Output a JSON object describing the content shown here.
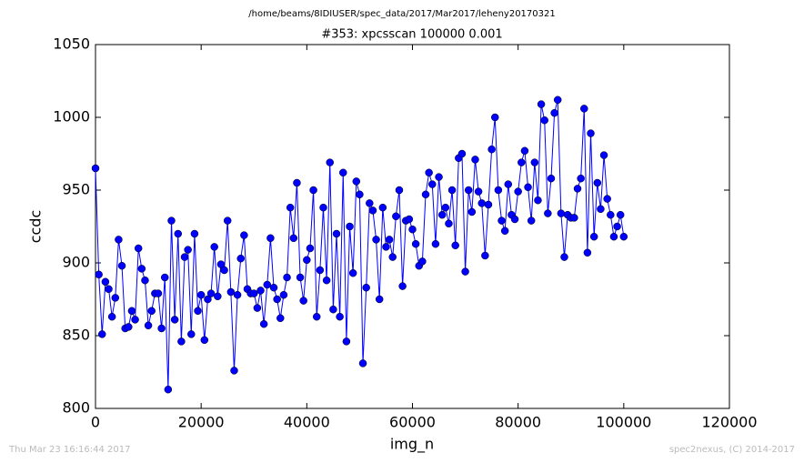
{
  "chart_data": {
    "type": "line",
    "suptitle": "/home/beams/8IDIUSER/spec_data/2017/Mar2017/leheny20170321",
    "title": "#353: xpcsscan 100000 0.001",
    "x_label": "img_n",
    "y_label": "ccdc",
    "footer_left": "Thu Mar 23 16:16:44 2017",
    "footer_right": "spec2nexus, (C) 2014-2017",
    "xlim": [
      0,
      120000
    ],
    "xticks": [
      0,
      20000,
      40000,
      60000,
      80000,
      100000,
      120000
    ],
    "ylim": [
      800,
      1050
    ],
    "yticks": [
      800,
      850,
      900,
      950,
      1000,
      1050
    ],
    "grid": false,
    "x": [
      0,
      625,
      1250,
      1875,
      2500,
      3125,
      3750,
      4375,
      5000,
      5625,
      6250,
      6875,
      7500,
      8125,
      8750,
      9375,
      10000,
      10625,
      11250,
      11875,
      12500,
      13125,
      13750,
      14375,
      15000,
      15625,
      16250,
      16875,
      17500,
      18125,
      18750,
      19375,
      20000,
      20625,
      21250,
      21875,
      22500,
      23125,
      23750,
      24375,
      25000,
      25625,
      26250,
      26875,
      27500,
      28125,
      28750,
      29375,
      30000,
      30625,
      31250,
      31875,
      32500,
      33125,
      33750,
      34375,
      35000,
      35625,
      36250,
      36875,
      37500,
      38125,
      38750,
      39375,
      40000,
      40625,
      41250,
      41875,
      42500,
      43125,
      43750,
      44375,
      45000,
      45625,
      46250,
      46875,
      47500,
      48125,
      48750,
      49375,
      50000,
      50625,
      51250,
      51875,
      52500,
      53125,
      53750,
      54375,
      55000,
      55625,
      56250,
      56875,
      57500,
      58125,
      58750,
      59375,
      60000,
      60625,
      61250,
      61875,
      62500,
      63125,
      63750,
      64375,
      65000,
      65625,
      66250,
      66875,
      67500,
      68125,
      68750,
      69375,
      70000,
      70625,
      71250,
      71875,
      72500,
      73125,
      73750,
      74375,
      75000,
      75625,
      76250,
      76875,
      77500,
      78125,
      78750,
      79375,
      80000,
      80625,
      81250,
      81875,
      82500,
      83125,
      83750,
      84375,
      85000,
      85625,
      86250,
      86875,
      87500,
      88125,
      88750,
      89375,
      90000,
      90625,
      91250,
      91875,
      92500,
      93125,
      93750,
      94375,
      95000,
      95625,
      96250,
      96875,
      97500,
      98125,
      98750,
      99375,
      100000
    ],
    "series": [
      {
        "color": "#0000ff",
        "values": [
          965,
          892,
          851,
          887,
          882,
          863,
          876,
          916,
          898,
          855,
          856,
          867,
          861,
          910,
          896,
          888,
          857,
          867,
          879,
          879,
          855,
          890,
          813,
          929,
          861,
          920,
          846,
          904,
          909,
          851,
          920,
          867,
          878,
          847,
          875,
          879,
          911,
          877,
          899,
          895,
          929,
          880,
          826,
          878,
          903,
          919,
          882,
          879,
          879,
          869,
          881,
          858,
          885,
          917,
          883,
          875,
          862,
          878,
          890,
          938,
          917,
          955,
          890,
          874,
          902,
          910,
          950,
          863,
          895,
          938,
          888,
          969,
          868,
          920,
          863,
          962,
          846,
          925,
          893,
          956,
          947,
          831,
          883,
          941,
          936,
          916,
          875,
          938,
          911,
          916,
          904,
          932,
          950,
          884,
          929,
          930,
          923,
          913,
          898,
          901,
          947,
          962,
          954,
          913,
          959,
          933,
          938,
          927,
          950,
          912,
          972,
          975,
          894,
          950,
          935,
          971,
          949,
          941,
          905,
          940,
          978,
          1000,
          950,
          929,
          922,
          954,
          933,
          930,
          949,
          969,
          977,
          952,
          929,
          969,
          943,
          1009,
          998,
          934,
          958,
          1003,
          1012,
          934,
          904,
          933,
          931,
          931,
          951,
          958,
          1006,
          907,
          989,
          918,
          955,
          937,
          974,
          944,
          933,
          918,
          925,
          933,
          918
        ]
      }
    ]
  }
}
